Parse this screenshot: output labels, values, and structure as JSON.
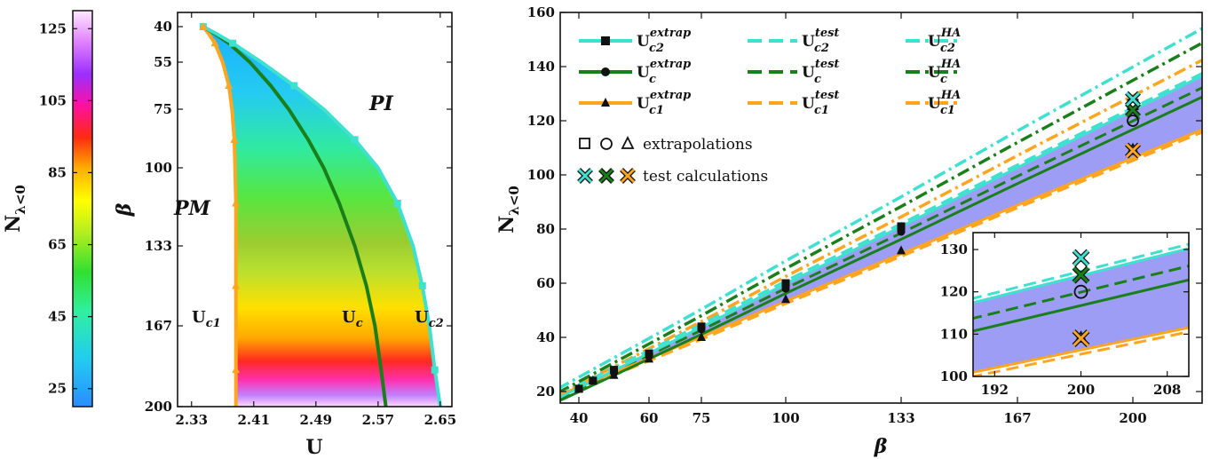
{
  "colors": {
    "c2": "#40e0d0",
    "c": "#1a7f1a",
    "c1": "#ffa51f",
    "band": "#9d9df5"
  },
  "colorbar": {
    "label": "N",
    "label_sub": "λ<0",
    "ticks": [
      25,
      45,
      65,
      85,
      105,
      125
    ],
    "range": [
      20,
      130
    ]
  },
  "chart_data": [
    {
      "type": "area",
      "xlabel": "U",
      "ylabel": "β",
      "x_ticks": [
        "2.33",
        "2.41",
        "2.49",
        "2.57",
        "2.65"
      ],
      "x_tick_values": [
        2.33,
        2.41,
        2.49,
        2.57,
        2.65
      ],
      "y_ticks": [
        "40",
        "55",
        "75",
        "100",
        "133",
        "167",
        "200"
      ],
      "xlim": [
        2.312,
        2.665
      ],
      "annotations": {
        "pm": "PM",
        "pi": "PI",
        "uc1": "U",
        "uc1_sub": "c1",
        "uc": "U",
        "uc_sub": "c",
        "uc2": "U",
        "uc2_sub": "c2"
      },
      "series": [
        {
          "key": "c1",
          "beta": [
            40,
            43,
            47,
            55,
            65,
            75,
            88,
            100,
            115,
            133,
            150,
            167,
            185,
            200
          ],
          "u": [
            2.345,
            2.352,
            2.36,
            2.37,
            2.378,
            2.382,
            2.385,
            2.386,
            2.387,
            2.387,
            2.387,
            2.387,
            2.387,
            2.387
          ]
        },
        {
          "key": "c",
          "beta": [
            40,
            43,
            47,
            55,
            65,
            75,
            88,
            100,
            115,
            133,
            150,
            167,
            185,
            200
          ],
          "u": [
            2.345,
            2.36,
            2.378,
            2.405,
            2.432,
            2.455,
            2.48,
            2.5,
            2.52,
            2.54,
            2.555,
            2.566,
            2.574,
            2.58
          ]
        },
        {
          "key": "c2",
          "beta": [
            40,
            43,
            47,
            55,
            65,
            75,
            88,
            100,
            115,
            133,
            150,
            167,
            185,
            200
          ],
          "u": [
            2.345,
            2.362,
            2.383,
            2.42,
            2.462,
            2.5,
            2.54,
            2.57,
            2.595,
            2.615,
            2.627,
            2.636,
            2.643,
            2.65
          ]
        }
      ]
    },
    {
      "type": "line",
      "xlabel": "β",
      "ylabel": "N",
      "ylabel_sub": "λ<0",
      "x_ticks": [
        40,
        60,
        75,
        100,
        133,
        167,
        200
      ],
      "y_ticks": [
        20,
        40,
        60,
        80,
        100,
        120,
        140,
        160
      ],
      "xlim": [
        34,
        226
      ],
      "ylim": [
        15,
        160
      ],
      "legend": {
        "col1": [
          {
            "key": "c2",
            "base": "U",
            "sub": "c2",
            "sup": "extrap"
          },
          {
            "key": "c",
            "base": "U",
            "sub": "c",
            "sup": "extrap"
          },
          {
            "key": "c1",
            "base": "U",
            "sub": "c1",
            "sup": "extrap"
          }
        ],
        "col2": [
          {
            "key": "c2",
            "base": "U",
            "sub": "c2",
            "sup": "test"
          },
          {
            "key": "c",
            "base": "U",
            "sub": "c",
            "sup": "test"
          },
          {
            "key": "c1",
            "base": "U",
            "sub": "c1",
            "sup": "test"
          }
        ],
        "col3": [
          {
            "key": "c2",
            "base": "U",
            "sub": "c2",
            "sup": "HA"
          },
          {
            "key": "c",
            "base": "U",
            "sub": "c",
            "sup": "HA"
          },
          {
            "key": "c1",
            "base": "U",
            "sub": "c1",
            "sup": "HA"
          }
        ],
        "extrapolations": "extrapolations",
        "test_calculations": "test calculations"
      },
      "fits": {
        "c2_extrap": [
          [
            34,
            17.5
          ],
          [
            226,
            140.5
          ]
        ],
        "c_extrap": [
          [
            34,
            16.3
          ],
          [
            226,
            132.5
          ]
        ],
        "c1_extrap": [
          [
            34,
            18.5
          ],
          [
            226,
            120.0
          ]
        ],
        "c2_test": [
          [
            34,
            18.6
          ],
          [
            226,
            141.5
          ]
        ],
        "c_test": [
          [
            34,
            17.3
          ],
          [
            226,
            136.0
          ]
        ],
        "c1_test": [
          [
            34,
            17.6
          ],
          [
            226,
            119.0
          ]
        ],
        "c2_ha": [
          [
            34,
            21.0
          ],
          [
            226,
            158.5
          ]
        ],
        "c_ha": [
          [
            34,
            19.5
          ],
          [
            226,
            153.0
          ]
        ],
        "c1_ha": [
          [
            34,
            18.5
          ],
          [
            226,
            146.5
          ]
        ]
      },
      "points": {
        "c2_extrap": {
          "x": [
            40,
            44,
            50,
            60,
            75,
            100,
            133
          ],
          "y": [
            21,
            24,
            28,
            34,
            44,
            60,
            81
          ]
        },
        "c_extrap": {
          "x": [
            40,
            44,
            50,
            60,
            75,
            100,
            133
          ],
          "y": [
            21,
            24,
            27,
            33,
            43,
            58,
            79
          ]
        },
        "c1_extrap": {
          "x": [
            40,
            44,
            50,
            60,
            75,
            100,
            133
          ],
          "y": [
            21,
            24,
            26,
            32,
            40,
            54,
            72
          ]
        },
        "extrap_200": {
          "c2": 126,
          "c": 120,
          "c1": 109
        },
        "test_200": {
          "c2": 128,
          "c": 124,
          "c1": 109
        }
      },
      "inset": {
        "xlim": [
          190,
          210
        ],
        "ylim": [
          100,
          134
        ],
        "x_ticks": [
          192,
          200,
          208
        ],
        "y_ticks": [
          100,
          110,
          120,
          130
        ]
      }
    }
  ]
}
